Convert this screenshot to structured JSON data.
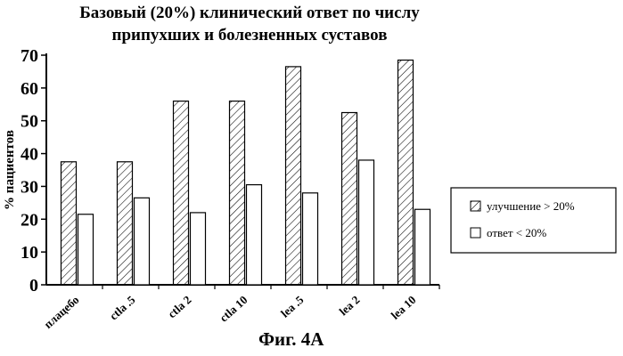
{
  "title_lines": [
    "Базовый (20%) клинический ответ по числу",
    "припухших и болезненных суставов"
  ],
  "caption": "Фиг. 4A",
  "colors": {
    "bar_stroke": "#000000",
    "hatch": "#000000",
    "bar_fill": "#ffffff"
  },
  "chart_data": {
    "type": "bar",
    "ylabel": "% пациентов",
    "xlabel": "",
    "ylim": [
      0,
      70
    ],
    "yticks": [
      0,
      10,
      20,
      30,
      40,
      50,
      60,
      70
    ],
    "grid": false,
    "legend_position": "right",
    "categories": [
      "плацебо",
      "ctla .5",
      "ctla 2",
      "ctla 10",
      "lea .5",
      "lea 2",
      "lea 10"
    ],
    "series": [
      {
        "name": "улучшение > 20%",
        "pattern": "hatched",
        "values": [
          37.5,
          37.5,
          56,
          56,
          66.5,
          52.5,
          68.5
        ]
      },
      {
        "name": "ответ < 20%",
        "pattern": "empty",
        "values": [
          21.5,
          26.5,
          22,
          30.5,
          28,
          38,
          23
        ]
      }
    ]
  }
}
